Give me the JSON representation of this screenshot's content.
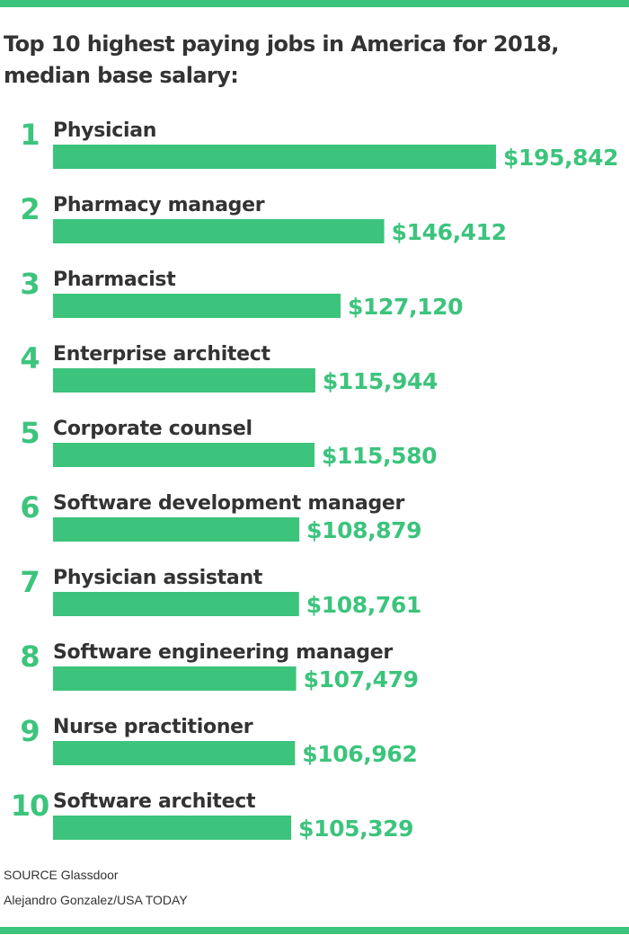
{
  "theme": {
    "accent": "#3cc47c",
    "text": "#333333"
  },
  "title_line1": "Top 10 highest paying jobs in America for 2018,",
  "title_line2": "median base salary:",
  "chart_data": {
    "type": "bar",
    "orientation": "horizontal",
    "title": "Top 10 highest paying jobs in America for 2018, median base salary:",
    "ranks": [
      "1",
      "2",
      "3",
      "4",
      "5",
      "6",
      "7",
      "8",
      "9",
      "10"
    ],
    "categories": [
      "Physician",
      "Pharmacy manager",
      "Pharmacist",
      "Enterprise architect",
      "Corporate counsel",
      "Software development manager",
      "Physician assistant",
      "Software engineering manager",
      "Nurse practitioner",
      "Software architect"
    ],
    "values": [
      195842,
      146412,
      127120,
      115944,
      115580,
      108879,
      108761,
      107479,
      106962,
      105329
    ],
    "value_labels": [
      "$195,842",
      "$146,412",
      "$127,120",
      "$115,944",
      "$115,580",
      "$108,879",
      "$108,761",
      "$107,479",
      "$106,962",
      "$105,329"
    ],
    "xlim": [
      0,
      195842
    ],
    "grid": false,
    "legend": "none",
    "bar_color": "#3cc47c"
  },
  "footer": {
    "source": "SOURCE Glassdoor",
    "credit": "Alejandro Gonzalez/USA TODAY"
  }
}
